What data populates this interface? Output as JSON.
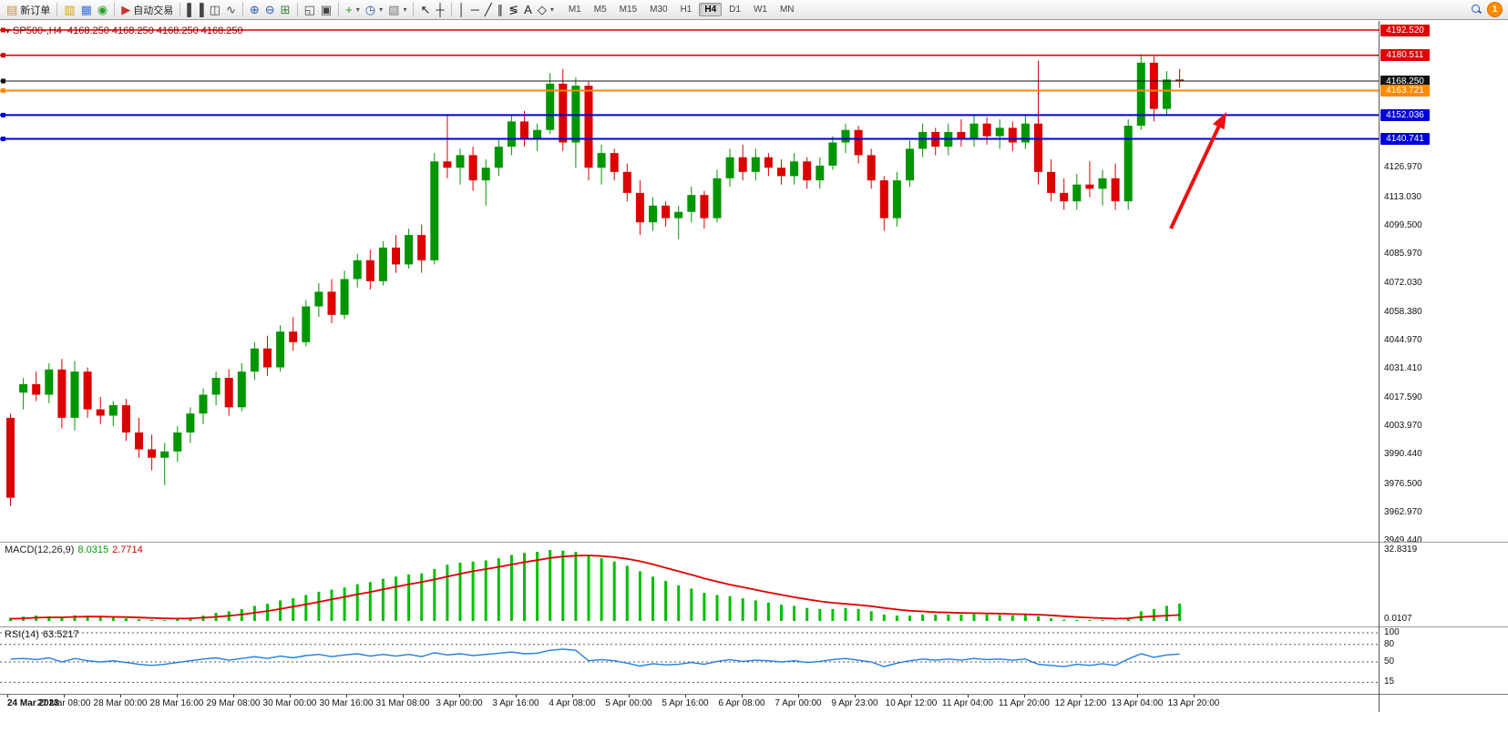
{
  "toolbar": {
    "groups": [
      {
        "items": [
          {
            "name": "new-order",
            "glyph": "▤",
            "color": "#c39b2a",
            "label": "新订单"
          }
        ]
      },
      {
        "items": [
          {
            "name": "charts",
            "glyph": "▥",
            "color": "#d4a017"
          },
          {
            "name": "profiles",
            "glyph": "▦",
            "color": "#3a6fd8"
          },
          {
            "name": "market-watch",
            "glyph": "◉",
            "color": "#2aa02a"
          }
        ]
      },
      {
        "items": [
          {
            "name": "auto-trading",
            "glyph": "▶",
            "color": "#cc3333",
            "label": "自动交易"
          }
        ]
      },
      {
        "items": [
          {
            "name": "bar-chart-mode",
            "glyph": "▌▐",
            "color": "#444"
          },
          {
            "name": "candlestick-mode",
            "glyph": "◫",
            "color": "#444"
          },
          {
            "name": "line-chart-mode",
            "glyph": "∿",
            "color": "#444"
          }
        ]
      },
      {
        "items": [
          {
            "name": "zoom-in",
            "glyph": "⊕",
            "color": "#2a5db0"
          },
          {
            "name": "zoom-out",
            "glyph": "⊖",
            "color": "#2a5db0"
          },
          {
            "name": "tile-windows",
            "glyph": "⊞",
            "color": "#3a7f3a"
          }
        ]
      },
      {
        "items": [
          {
            "name": "cascade-windows",
            "glyph": "◱",
            "color": "#444"
          },
          {
            "name": "arrange-windows",
            "glyph": "▣",
            "color": "#444"
          }
        ]
      },
      {
        "items": [
          {
            "name": "add-indicator",
            "glyph": "+",
            "color": "#1c9e1c",
            "dropdown": true
          },
          {
            "name": "periods",
            "glyph": "◷",
            "color": "#2a5db0",
            "dropdown": true
          },
          {
            "name": "templates",
            "glyph": "▨",
            "color": "#777",
            "dropdown": true
          }
        ]
      },
      {
        "items": [
          {
            "name": "cursor-tool",
            "glyph": "↖",
            "color": "#222"
          },
          {
            "name": "crosshair-tool",
            "glyph": "┼",
            "color": "#222"
          }
        ]
      },
      {
        "items": [
          {
            "name": "vertical-line-tool",
            "glyph": "│",
            "color": "#222"
          },
          {
            "name": "horizontal-line-tool",
            "glyph": "─",
            "color": "#222"
          },
          {
            "name": "trendline-tool",
            "glyph": "╱",
            "color": "#222"
          },
          {
            "name": "channel-tool",
            "glyph": "∥",
            "color": "#222"
          },
          {
            "name": "fibonacci-tool",
            "glyph": "≶",
            "color": "#222"
          },
          {
            "name": "text-tool",
            "glyph": "A",
            "color": "#222"
          },
          {
            "name": "shapes-tool",
            "glyph": "◇",
            "color": "#222",
            "dropdown": true
          }
        ]
      }
    ],
    "timeframes": [
      "M1",
      "M5",
      "M15",
      "M30",
      "H1",
      "H4",
      "D1",
      "W1",
      "MN"
    ],
    "active_timeframe": "H4",
    "notification_count": "1"
  },
  "chart": {
    "title_symbol": "SP500-,H4",
    "title_ohlc": "4168.250 4168.250 4168.250 4168.250",
    "price_axis": [
      "4126.970",
      "4113.030",
      "4099.500",
      "4085.970",
      "4072.030",
      "4058.380",
      "4044.970",
      "4031.410",
      "4017.590",
      "4003.970",
      "3990.440",
      "3976.500",
      "3962.970",
      "3949.440"
    ],
    "level_lines": [
      {
        "label": "4192.520",
        "price": 4192.52,
        "color": "#e00000",
        "width": 1.4
      },
      {
        "label": "4180.511",
        "price": 4180.511,
        "color": "#e00000",
        "width": 1.6
      },
      {
        "label": "4168.250",
        "price": 4168.25,
        "color": "#111111",
        "width": 1
      },
      {
        "label": "4163.721",
        "price": 4163.721,
        "color": "#ff8a00",
        "width": 2
      },
      {
        "label": "4152.036",
        "price": 4152.036,
        "color": "#0000d8",
        "width": 2
      },
      {
        "label": "4140.741",
        "price": 4140.741,
        "color": "#0000d8",
        "width": 2
      }
    ],
    "arrow_color": "#ee1111"
  },
  "indicators": {
    "macd": {
      "name": "MACD(12,26,9)",
      "value_main": "8.0315",
      "value_signal": "2.7714",
      "axis_max": "32.8319",
      "axis_min": "0.0107"
    },
    "rsi": {
      "name": "RSI(14)",
      "value": "63.5217",
      "levels": [
        "100",
        "80",
        "50",
        "15"
      ]
    }
  },
  "chart_data": {
    "type": "candlestick",
    "symbol": "SP500-",
    "timeframe": "H4",
    "ylim": [
      3949.44,
      4192.52
    ],
    "ohlc": [
      [
        4008,
        4010,
        3966,
        3970
      ],
      [
        4020,
        4027,
        4012,
        4024
      ],
      [
        4024,
        4030,
        4016,
        4019
      ],
      [
        4019,
        4034,
        4015,
        4031
      ],
      [
        4031,
        4036,
        4003,
        4008
      ],
      [
        4008,
        4035,
        4002,
        4030
      ],
      [
        4030,
        4032,
        4008,
        4012
      ],
      [
        4012,
        4018,
        4005,
        4009
      ],
      [
        4009,
        4016,
        4004,
        4014
      ],
      [
        4014,
        4017,
        3997,
        4001
      ],
      [
        4001,
        4008,
        3989,
        3993
      ],
      [
        3993,
        4000,
        3983,
        3989
      ],
      [
        3989,
        3996,
        3976,
        3992
      ],
      [
        3992,
        4004,
        3987,
        4001
      ],
      [
        4001,
        4013,
        3996,
        4010
      ],
      [
        4010,
        4022,
        4005,
        4019
      ],
      [
        4019,
        4030,
        4014,
        4027
      ],
      [
        4027,
        4031,
        4009,
        4013
      ],
      [
        4013,
        4034,
        4011,
        4030
      ],
      [
        4030,
        4044,
        4026,
        4041
      ],
      [
        4041,
        4047,
        4028,
        4032
      ],
      [
        4032,
        4052,
        4030,
        4049
      ],
      [
        4049,
        4056,
        4040,
        4044
      ],
      [
        4044,
        4064,
        4042,
        4061
      ],
      [
        4061,
        4072,
        4056,
        4068
      ],
      [
        4068,
        4074,
        4053,
        4057
      ],
      [
        4057,
        4078,
        4055,
        4074
      ],
      [
        4074,
        4086,
        4070,
        4083
      ],
      [
        4083,
        4088,
        4069,
        4073
      ],
      [
        4073,
        4092,
        4071,
        4089
      ],
      [
        4089,
        4095,
        4077,
        4081
      ],
      [
        4081,
        4098,
        4079,
        4095
      ],
      [
        4095,
        4100,
        4077,
        4083
      ],
      [
        4083,
        4134,
        4081,
        4130
      ],
      [
        4130,
        4152,
        4122,
        4127
      ],
      [
        4127,
        4136,
        4119,
        4133
      ],
      [
        4133,
        4137,
        4116,
        4121
      ],
      [
        4121,
        4131,
        4109,
        4127
      ],
      [
        4127,
        4141,
        4123,
        4137
      ],
      [
        4137,
        4152,
        4133,
        4149
      ],
      [
        4149,
        4154,
        4137,
        4141
      ],
      [
        4141,
        4148,
        4135,
        4145
      ],
      [
        4145,
        4172,
        4143,
        4167
      ],
      [
        4167,
        4174,
        4135,
        4139
      ],
      [
        4139,
        4170,
        4127,
        4166
      ],
      [
        4166,
        4168,
        4121,
        4127
      ],
      [
        4127,
        4138,
        4119,
        4134
      ],
      [
        4134,
        4136,
        4121,
        4125
      ],
      [
        4125,
        4129,
        4111,
        4115
      ],
      [
        4115,
        4121,
        4095,
        4101
      ],
      [
        4101,
        4113,
        4097,
        4109
      ],
      [
        4109,
        4111,
        4099,
        4103
      ],
      [
        4103,
        4109,
        4093,
        4106
      ],
      [
        4106,
        4118,
        4101,
        4114
      ],
      [
        4114,
        4116,
        4098,
        4103
      ],
      [
        4103,
        4126,
        4101,
        4122
      ],
      [
        4122,
        4136,
        4118,
        4132
      ],
      [
        4132,
        4138,
        4121,
        4125
      ],
      [
        4125,
        4136,
        4121,
        4132
      ],
      [
        4132,
        4134,
        4123,
        4127
      ],
      [
        4127,
        4131,
        4119,
        4123
      ],
      [
        4123,
        4134,
        4119,
        4130
      ],
      [
        4130,
        4132,
        4117,
        4121
      ],
      [
        4121,
        4132,
        4117,
        4128
      ],
      [
        4128,
        4142,
        4126,
        4139
      ],
      [
        4139,
        4148,
        4134,
        4145
      ],
      [
        4145,
        4147,
        4129,
        4133
      ],
      [
        4133,
        4136,
        4117,
        4121
      ],
      [
        4121,
        4123,
        4097,
        4103
      ],
      [
        4103,
        4125,
        4099,
        4121
      ],
      [
        4121,
        4140,
        4118,
        4136
      ],
      [
        4136,
        4148,
        4132,
        4144
      ],
      [
        4144,
        4146,
        4133,
        4137
      ],
      [
        4137,
        4148,
        4133,
        4144
      ],
      [
        4144,
        4150,
        4137,
        4141
      ],
      [
        4141,
        4152,
        4137,
        4148
      ],
      [
        4148,
        4151,
        4138,
        4142
      ],
      [
        4142,
        4150,
        4136,
        4146
      ],
      [
        4146,
        4149,
        4135,
        4139
      ],
      [
        4139,
        4152,
        4136,
        4148
      ],
      [
        4148,
        4178,
        4119,
        4125
      ],
      [
        4125,
        4131,
        4111,
        4115
      ],
      [
        4115,
        4122,
        4107,
        4111
      ],
      [
        4111,
        4124,
        4107,
        4119
      ],
      [
        4119,
        4130,
        4113,
        4117
      ],
      [
        4117,
        4126,
        4109,
        4122
      ],
      [
        4122,
        4129,
        4107,
        4111
      ],
      [
        4111,
        4150,
        4107,
        4147
      ],
      [
        4147,
        4181,
        4145,
        4177
      ],
      [
        4177,
        4180,
        4149,
        4155
      ],
      [
        4155,
        4173,
        4152,
        4169
      ],
      [
        4169,
        4174,
        4165,
        4168.25
      ]
    ],
    "x_labels": [
      "24 Mar 2023",
      "27 Mar 08:00",
      "28 Mar 00:00",
      "28 Mar 16:00",
      "29 Mar 08:00",
      "30 Mar 00:00",
      "30 Mar 16:00",
      "31 Mar 08:00",
      "3 Apr 00:00",
      "3 Apr 16:00",
      "4 Apr 08:00",
      "5 Apr 00:00",
      "5 Apr 16:00",
      "6 Apr 08:00",
      "7 Apr 00:00",
      "9 Apr 23:00",
      "10 Apr 12:00",
      "11 Apr 04:00",
      "11 Apr 20:00",
      "12 Apr 12:00",
      "13 Apr 04:00",
      "13 Apr 20:00"
    ],
    "macd_histogram": [
      1.5,
      2,
      2.5,
      2.2,
      1.8,
      2.6,
      2.4,
      1.9,
      1.6,
      1.2,
      0.8,
      0.5,
      0.4,
      0.8,
      1.5,
      2.5,
      3.8,
      4.5,
      5.5,
      7,
      8,
      9.5,
      10.5,
      12,
      13.5,
      14.5,
      15.5,
      17,
      18,
      19.5,
      20.5,
      21.5,
      22,
      24,
      26,
      27,
      27.5,
      28,
      29,
      30.5,
      31.5,
      32,
      32.8,
      32.5,
      32,
      30.5,
      29,
      27.5,
      25.5,
      23,
      20.5,
      18.5,
      16.5,
      15,
      13,
      12,
      11.5,
      10.5,
      9.5,
      8.5,
      7.5,
      7,
      6,
      5.5,
      5.5,
      6,
      5.5,
      4.5,
      3,
      2.5,
      2.5,
      3,
      3,
      3,
      3,
      3.2,
      3,
      2.8,
      2.6,
      2.8,
      2.2,
      1.2,
      0.6,
      0.5,
      0.4,
      0.5,
      0.3,
      1.5,
      4.5,
      5.5,
      7,
      8.03
    ],
    "macd_signal": [
      1,
      1.2,
      1.5,
      1.7,
      1.7,
      1.9,
      2,
      2,
      1.9,
      1.8,
      1.6,
      1.4,
      1.2,
      1.1,
      1.2,
      1.5,
      1.9,
      2.4,
      3,
      3.8,
      4.6,
      5.6,
      6.6,
      7.7,
      8.8,
      10,
      11.1,
      12.3,
      13.4,
      14.6,
      15.8,
      16.9,
      18,
      19.2,
      20.5,
      21.8,
      23,
      24,
      25,
      26.1,
      27.2,
      28.1,
      29.1,
      29.8,
      30.2,
      30.3,
      30,
      29.5,
      28.7,
      27.6,
      26.2,
      24.6,
      23,
      21.4,
      19.7,
      18.2,
      16.8,
      15.6,
      14.4,
      13.2,
      12.1,
      11,
      10,
      9.1,
      8.4,
      7.9,
      7.4,
      6.8,
      6,
      5.3,
      4.7,
      4.4,
      4.1,
      3.9,
      3.7,
      3.6,
      3.5,
      3.4,
      3.2,
      3.1,
      2.9,
      2.6,
      2.2,
      1.8,
      1.5,
      1.3,
      1.1,
      1.2,
      1.8,
      2.2,
      2.5,
      2.77
    ],
    "rsi_values": [
      55,
      56,
      54,
      57,
      50,
      56,
      52,
      50,
      52,
      49,
      46,
      44,
      46,
      49,
      52,
      55,
      57,
      53,
      56,
      59,
      56,
      60,
      57,
      61,
      63,
      59,
      62,
      64,
      60,
      63,
      60,
      63,
      59,
      66,
      62,
      64,
      61,
      63,
      65,
      67,
      64,
      65,
      70,
      72,
      70,
      52,
      54,
      52,
      48,
      43,
      47,
      45,
      46,
      49,
      46,
      51,
      54,
      51,
      53,
      52,
      50,
      52,
      49,
      51,
      54,
      56,
      53,
      50,
      42,
      48,
      52,
      55,
      53,
      55,
      53,
      56,
      54,
      55,
      53,
      55,
      46,
      44,
      42,
      46,
      44,
      47,
      44,
      55,
      64,
      58,
      62,
      63.52
    ]
  }
}
